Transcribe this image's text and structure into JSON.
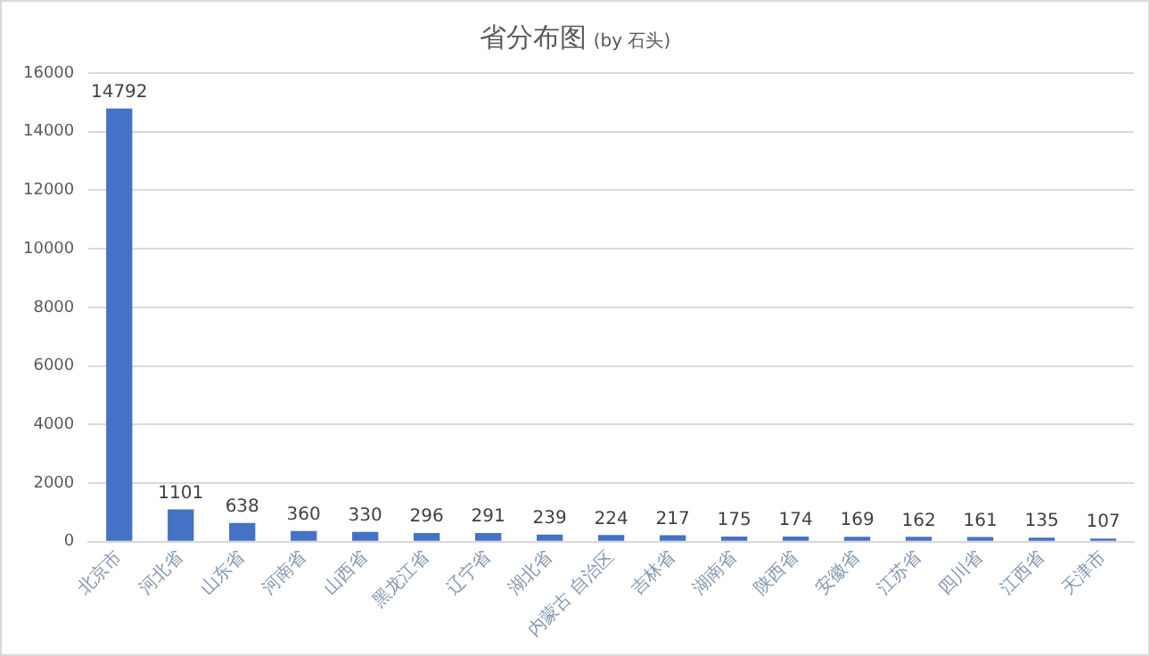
{
  "chart_data": {
    "type": "bar",
    "title": "省分布图",
    "subtitle": "(by 石头)",
    "categories": [
      "北京市",
      "河北省",
      "山东省",
      "河南省",
      "山西省",
      "黑龙江省",
      "辽宁省",
      "湖北省",
      "内蒙古 自治区",
      "吉林省",
      "湖南省",
      "陕西省",
      "安徽省",
      "江苏省",
      "四川省",
      "江西省",
      "天津市"
    ],
    "values": [
      14792,
      1101,
      638,
      360,
      330,
      296,
      291,
      239,
      224,
      217,
      175,
      174,
      169,
      162,
      161,
      135,
      107
    ],
    "color": "#4472c4",
    "ylim": [
      0,
      16000
    ],
    "yticks": [
      0,
      2000,
      4000,
      6000,
      8000,
      10000,
      12000,
      14000,
      16000
    ],
    "grid": "y",
    "data_labels": true,
    "legend": false
  }
}
